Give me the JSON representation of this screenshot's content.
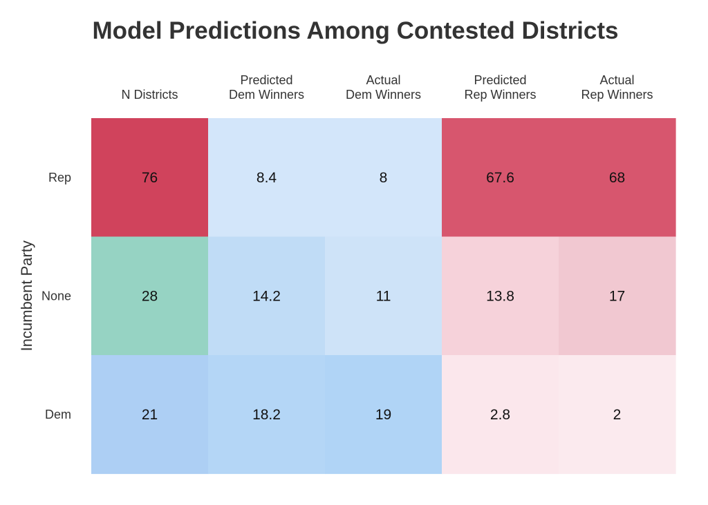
{
  "chart_data": {
    "type": "heatmap",
    "title": "Model Predictions Among Contested Districts",
    "ylabel": "Incumbent Party",
    "xlabel": "",
    "columns": [
      [
        "N Districts"
      ],
      [
        "Predicted",
        "Dem Winners"
      ],
      [
        "Actual",
        "Dem Winners"
      ],
      [
        "Predicted",
        "Rep Winners"
      ],
      [
        "Actual",
        "Rep Winners"
      ]
    ],
    "rows": [
      "Rep",
      "None",
      "Dem"
    ],
    "values": [
      [
        "76",
        "8.4",
        "8",
        "67.6",
        "68"
      ],
      [
        "28",
        "14.2",
        "11",
        "13.8",
        "17"
      ],
      [
        "21",
        "18.2",
        "19",
        "2.8",
        "2"
      ]
    ],
    "cell_colors": [
      [
        "#d0435c",
        "#d3e6fa",
        "#d3e6fa",
        "#d7566e",
        "#d7566e"
      ],
      [
        "#96d3c3",
        "#c0dcf6",
        "#cee3f8",
        "#f6d2da",
        "#f1c8d1"
      ],
      [
        "#adcff4",
        "#b4d6f6",
        "#b0d4f6",
        "#fbe7ec",
        "#fbeaee"
      ]
    ]
  }
}
